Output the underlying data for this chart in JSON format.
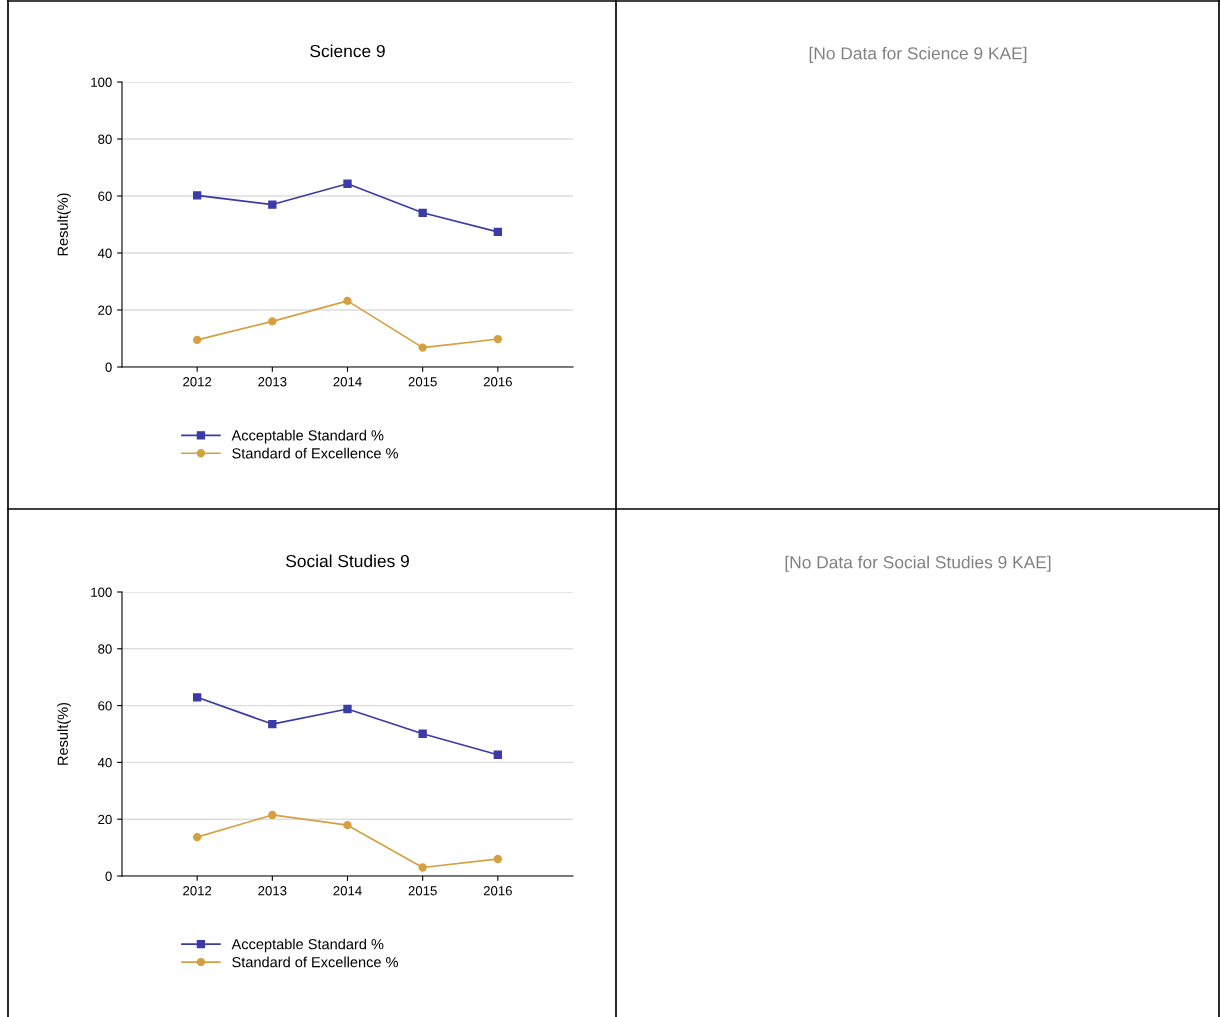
{
  "chart_data": [
    {
      "type": "line",
      "title": "Science 9",
      "ylabel": "Result(%)",
      "categories": [
        "2012",
        "2013",
        "2014",
        "2015",
        "2016"
      ],
      "ylim": [
        0,
        100
      ],
      "yticks": [
        0,
        20,
        40,
        60,
        80,
        100
      ],
      "grid": "y",
      "legend": "bottom",
      "series": [
        {
          "name": "Acceptable Standard %",
          "color": "#3b3ba8",
          "marker": "square",
          "values": [
            60.2,
            57.0,
            64.3,
            54.1,
            47.4
          ]
        },
        {
          "name": "Standard of Excellence %",
          "color": "#d4a040",
          "marker": "circle",
          "values": [
            9.5,
            16.0,
            23.2,
            6.8,
            9.8
          ]
        }
      ]
    },
    {
      "type": "other",
      "annotations": [
        "[No Data for Science 9 KAE]"
      ]
    },
    {
      "type": "line",
      "title": "Social Studies 9",
      "ylabel": "Result(%)",
      "categories": [
        "2012",
        "2013",
        "2014",
        "2015",
        "2016"
      ],
      "ylim": [
        0,
        100
      ],
      "yticks": [
        0,
        20,
        40,
        60,
        80,
        100
      ],
      "grid": "y",
      "legend": "bottom",
      "series": [
        {
          "name": "Acceptable Standard %",
          "color": "#3b3ba8",
          "marker": "square",
          "values": [
            62.9,
            53.5,
            58.8,
            50.1,
            42.7
          ]
        },
        {
          "name": "Standard of Excellence %",
          "color": "#d4a040",
          "marker": "circle",
          "values": [
            13.7,
            21.5,
            17.9,
            3.0,
            6.0
          ]
        }
      ]
    },
    {
      "type": "other",
      "annotations": [
        "[No Data for Social Studies 9 KAE]"
      ]
    }
  ]
}
